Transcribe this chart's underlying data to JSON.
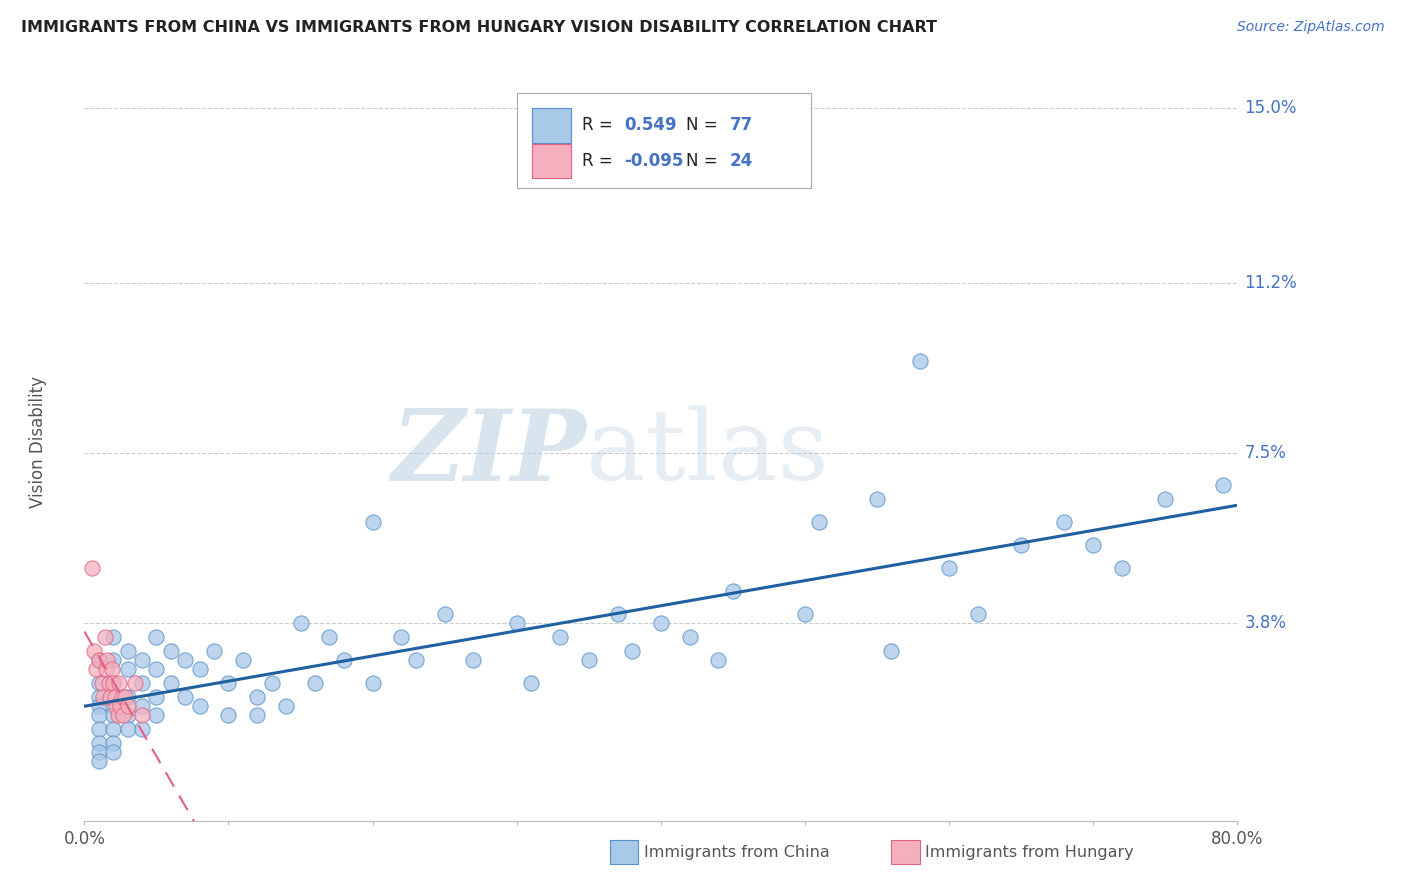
{
  "title": "IMMIGRANTS FROM CHINA VS IMMIGRANTS FROM HUNGARY VISION DISABILITY CORRELATION CHART",
  "source": "Source: ZipAtlas.com",
  "ylabel": "Vision Disability",
  "xlabel_china": "Immigrants from China",
  "xlabel_hungary": "Immigrants from Hungary",
  "r_china": 0.549,
  "n_china": 77,
  "r_hungary": -0.095,
  "n_hungary": 24,
  "color_china_fill": "#a8c8e8",
  "color_china_edge": "#5590c8",
  "color_china_line": "#2060a0",
  "color_hungary_fill": "#f4b0be",
  "color_hungary_edge": "#e06080",
  "color_hungary_line": "#e06080",
  "color_blue_text": "#4472c4",
  "grid_color": "#cccccc",
  "xlim_min": 0.0,
  "xlim_max": 0.8,
  "ylim_min": -0.005,
  "ylim_max": 0.16,
  "ytick_vals": [
    0.038,
    0.075,
    0.112,
    0.15
  ],
  "ytick_labels": [
    "3.8%",
    "7.5%",
    "11.2%",
    "15.0%"
  ],
  "china_x": [
    0.01,
    0.01,
    0.01,
    0.01,
    0.01,
    0.01,
    0.01,
    0.01,
    0.01,
    0.02,
    0.02,
    0.02,
    0.02,
    0.02,
    0.02,
    0.02,
    0.02,
    0.03,
    0.03,
    0.03,
    0.03,
    0.03,
    0.04,
    0.04,
    0.04,
    0.04,
    0.05,
    0.05,
    0.05,
    0.05,
    0.06,
    0.06,
    0.07,
    0.07,
    0.08,
    0.08,
    0.09,
    0.1,
    0.1,
    0.11,
    0.12,
    0.12,
    0.13,
    0.14,
    0.15,
    0.16,
    0.17,
    0.18,
    0.2,
    0.2,
    0.22,
    0.23,
    0.25,
    0.27,
    0.3,
    0.31,
    0.33,
    0.35,
    0.37,
    0.38,
    0.4,
    0.42,
    0.44,
    0.45,
    0.5,
    0.51,
    0.55,
    0.56,
    0.58,
    0.6,
    0.62,
    0.65,
    0.68,
    0.7,
    0.72,
    0.75,
    0.79
  ],
  "china_y": [
    0.03,
    0.025,
    0.022,
    0.02,
    0.018,
    0.015,
    0.012,
    0.01,
    0.008,
    0.035,
    0.03,
    0.025,
    0.02,
    0.018,
    0.015,
    0.012,
    0.01,
    0.032,
    0.028,
    0.022,
    0.018,
    0.015,
    0.03,
    0.025,
    0.02,
    0.015,
    0.035,
    0.028,
    0.022,
    0.018,
    0.032,
    0.025,
    0.03,
    0.022,
    0.028,
    0.02,
    0.032,
    0.025,
    0.018,
    0.03,
    0.022,
    0.018,
    0.025,
    0.02,
    0.038,
    0.025,
    0.035,
    0.03,
    0.06,
    0.025,
    0.035,
    0.03,
    0.04,
    0.03,
    0.038,
    0.025,
    0.035,
    0.03,
    0.04,
    0.032,
    0.038,
    0.035,
    0.03,
    0.045,
    0.04,
    0.06,
    0.065,
    0.032,
    0.095,
    0.05,
    0.04,
    0.055,
    0.06,
    0.055,
    0.05,
    0.065,
    0.068
  ],
  "hungary_x": [
    0.005,
    0.007,
    0.008,
    0.01,
    0.012,
    0.013,
    0.014,
    0.015,
    0.016,
    0.017,
    0.018,
    0.019,
    0.02,
    0.021,
    0.022,
    0.023,
    0.024,
    0.025,
    0.026,
    0.027,
    0.028,
    0.03,
    0.035,
    0.04
  ],
  "hungary_y": [
    0.05,
    0.032,
    0.028,
    0.03,
    0.025,
    0.022,
    0.035,
    0.028,
    0.03,
    0.025,
    0.022,
    0.028,
    0.025,
    0.022,
    0.02,
    0.018,
    0.025,
    0.02,
    0.022,
    0.018,
    0.022,
    0.02,
    0.025,
    0.018
  ],
  "watermark_zip": "ZIP",
  "watermark_atlas": "atlas"
}
